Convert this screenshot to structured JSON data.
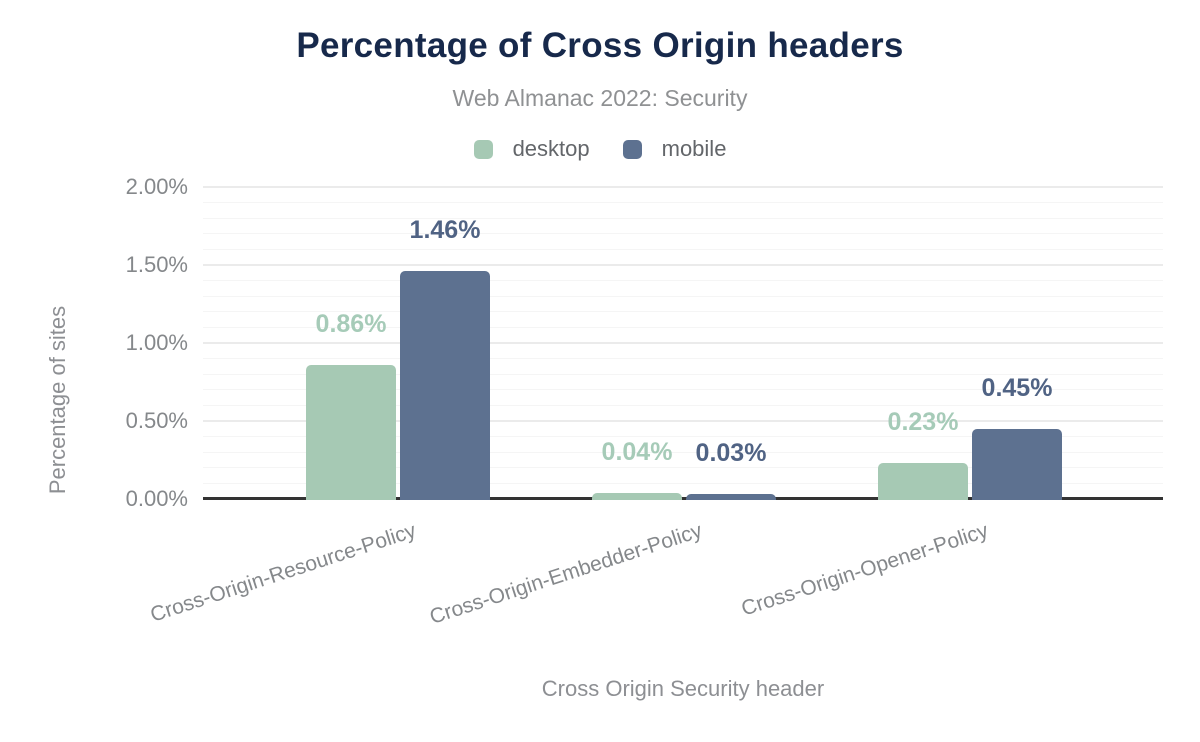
{
  "chart_data": {
    "type": "bar",
    "title": "Percentage of Cross Origin headers",
    "subtitle": "Web Almanac 2022: Security",
    "xlabel": "Cross Origin Security header",
    "ylabel": "Percentage of sites",
    "categories": [
      "Cross-Origin-Resource-Policy",
      "Cross-Origin-Embedder-Policy",
      "Cross-Origin-Opener-Policy"
    ],
    "series": [
      {
        "name": "desktop",
        "color": "#a6c9b4",
        "label_color": "#a6cbb8",
        "values": [
          0.86,
          0.04,
          0.23
        ],
        "labels": [
          "0.86%",
          "0.04%",
          "0.23%"
        ]
      },
      {
        "name": "mobile",
        "color": "#5d7190",
        "label_color": "#506384",
        "values": [
          1.46,
          0.03,
          0.45
        ],
        "labels": [
          "1.46%",
          "0.03%",
          "0.45%"
        ]
      }
    ],
    "yticks": [
      {
        "value": 0.0,
        "label": "0.00%"
      },
      {
        "value": 0.5,
        "label": "0.50%"
      },
      {
        "value": 1.0,
        "label": "1.00%"
      },
      {
        "value": 1.5,
        "label": "1.50%"
      },
      {
        "value": 2.0,
        "label": "2.00%"
      }
    ],
    "ylim": [
      0,
      2.0
    ],
    "grid": {
      "minor_step": 0.1,
      "major_step": 0.5,
      "visible": true
    },
    "legend_position": "top"
  },
  "colors": {
    "title_navy": "#17294b",
    "axis_text_gray": "#85888b",
    "axis_line": "#333333",
    "gridline_major": "#ebebeb",
    "gridline_minor": "#f5f5f5",
    "desktop_green": "#a6c9b4",
    "mobile_blue": "#5d7190"
  }
}
